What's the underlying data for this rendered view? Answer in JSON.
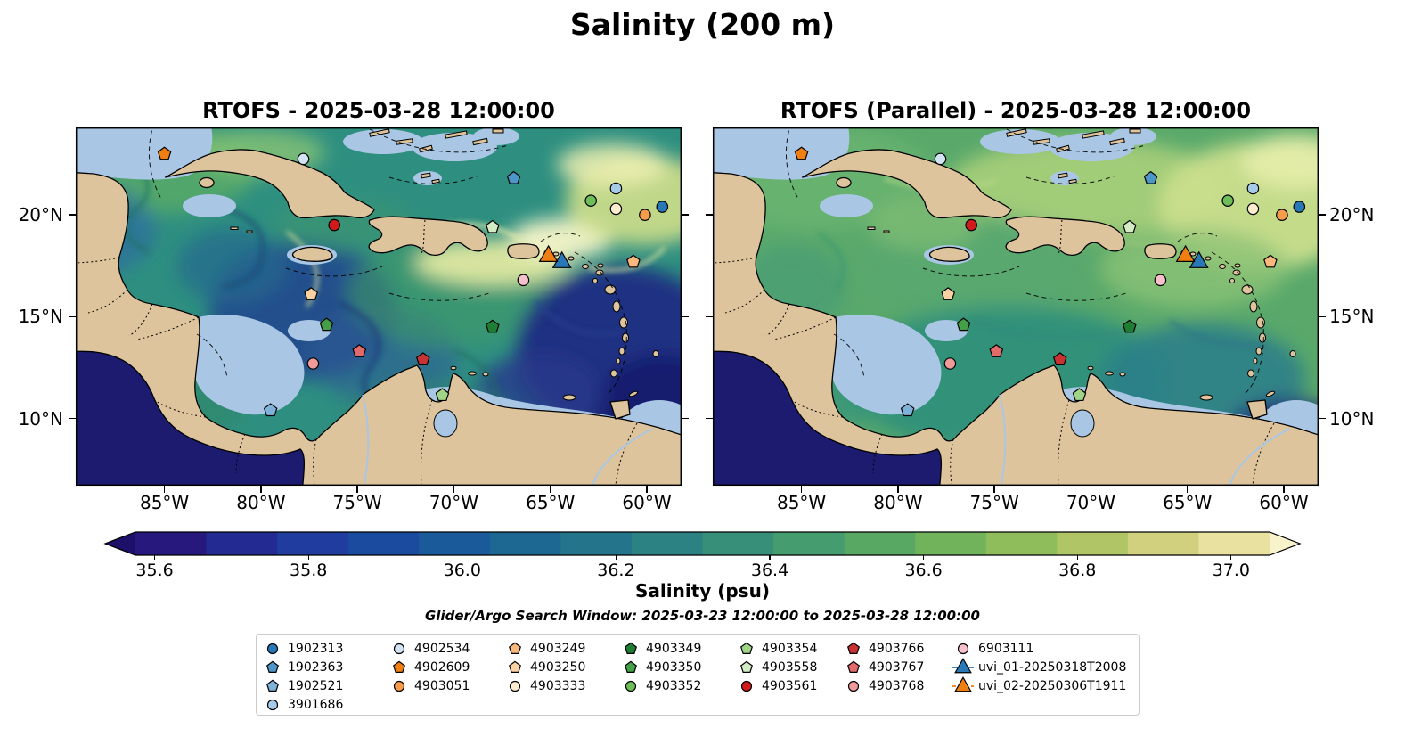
{
  "figure": {
    "title": "Salinity (200 m)",
    "search_window": "Glider/Argo Search Window: 2025-03-23 12:00:00 to 2025-03-28 12:00:00"
  },
  "panels": [
    {
      "title": "RTOFS - 2025-03-28 12:00:00"
    },
    {
      "title": "RTOFS (Parallel) - 2025-03-28 12:00:00"
    }
  ],
  "axes": {
    "lon_range_deg_w": [
      89.6,
      58.2
    ],
    "lat_range_deg_n": [
      24.3,
      6.7
    ],
    "lon_ticks": [
      {
        "deg_w": 85,
        "label": "85°W"
      },
      {
        "deg_w": 80,
        "label": "80°W"
      },
      {
        "deg_w": 75,
        "label": "75°W"
      },
      {
        "deg_w": 70,
        "label": "70°W"
      },
      {
        "deg_w": 65,
        "label": "65°W"
      },
      {
        "deg_w": 60,
        "label": "60°W"
      }
    ],
    "lat_ticks": [
      {
        "deg_n": 20,
        "label": "20°N"
      },
      {
        "deg_n": 15,
        "label": "15°N"
      },
      {
        "deg_n": 10,
        "label": "10°N"
      }
    ]
  },
  "colorbar": {
    "label": "Salinity (psu)",
    "range": [
      35.575,
      37.05
    ],
    "extend": "both",
    "extend_min_color": "#1c1068",
    "extend_max_color": "#f9f3cb",
    "segment_colors": [
      "#27187e",
      "#232a92",
      "#1f3c9e",
      "#1b4b9f",
      "#1a5a9a",
      "#1d6892",
      "#24758b",
      "#2c8283",
      "#378f7a",
      "#459c6e",
      "#58a863",
      "#71b35b",
      "#8fbd5b",
      "#b0c666",
      "#d0d07e",
      "#e9e1a0"
    ],
    "ticks": [
      {
        "value": 35.6,
        "label": "35.6"
      },
      {
        "value": 35.8,
        "label": "35.8"
      },
      {
        "value": 36.0,
        "label": "36.0"
      },
      {
        "value": 36.2,
        "label": "36.2"
      },
      {
        "value": 36.4,
        "label": "36.4"
      },
      {
        "value": 36.6,
        "label": "36.6"
      },
      {
        "value": 36.8,
        "label": "36.8"
      },
      {
        "value": 37.0,
        "label": "37.0"
      }
    ]
  },
  "legend": {
    "columns": [
      [
        "1902313",
        "1902363",
        "1902521",
        "3901686"
      ],
      [
        "4902534",
        "4902609",
        "4903051"
      ],
      [
        "4903249",
        "4903250",
        "4903333"
      ],
      [
        "4903349",
        "4903350",
        "4903352"
      ],
      [
        "4903354",
        "4903558",
        "4903561"
      ],
      [
        "4903766",
        "4903767",
        "4903768"
      ],
      [
        "6903111",
        "uvi_01-20250318T2008",
        "uvi_02-20250306T1911"
      ]
    ]
  },
  "chart_data": {
    "type": "heatmap",
    "title": "Salinity (200 m)",
    "panels": [
      "RTOFS - 2025-03-28 12:00:00",
      "RTOFS (Parallel) - 2025-03-28 12:00:00"
    ],
    "variable": "Salinity (psu)",
    "colormap_range": [
      35.575,
      37.05
    ],
    "colorbar_tick_values": [
      35.6,
      35.8,
      36.0,
      36.2,
      36.4,
      36.6,
      36.8,
      37.0
    ],
    "lon_ticks_deg_w": [
      85,
      80,
      75,
      70,
      65,
      60
    ],
    "lat_ticks_deg_n": [
      20,
      15,
      10
    ],
    "extend": "both",
    "platforms": [
      {
        "id": "1902313",
        "marker": "circle",
        "color": "#2878b8",
        "lon_w": 59.2,
        "lat_n": 20.4
      },
      {
        "id": "1902363",
        "marker": "pentagon",
        "color": "#4d96c8",
        "lon_w": 66.9,
        "lat_n": 21.8
      },
      {
        "id": "1902521",
        "marker": "pentagon",
        "color": "#7fb2d8",
        "lon_w": 79.5,
        "lat_n": 10.4
      },
      {
        "id": "3901686",
        "marker": "circle",
        "color": "#a6cbe8",
        "lon_w": 61.6,
        "lat_n": 21.3
      },
      {
        "id": "4902534",
        "marker": "circle",
        "color": "#d2e4f3",
        "lon_w": 77.8,
        "lat_n": 22.75
      },
      {
        "id": "4902609",
        "marker": "pentagon",
        "color": "#f07f13",
        "lon_w": 85.0,
        "lat_n": 23.0
      },
      {
        "id": "4903051",
        "marker": "circle",
        "color": "#f69c4a",
        "lon_w": 60.1,
        "lat_n": 20.0
      },
      {
        "id": "4903249",
        "marker": "pentagon",
        "color": "#fab87d",
        "lon_w": 60.7,
        "lat_n": 17.7
      },
      {
        "id": "4903250",
        "marker": "pentagon",
        "color": "#fdd2a2",
        "lon_w": 77.4,
        "lat_n": 16.1
      },
      {
        "id": "4903333",
        "marker": "circle",
        "color": "#fdeccd",
        "lon_w": 61.6,
        "lat_n": 20.3
      },
      {
        "id": "4903349",
        "marker": "pentagon",
        "color": "#1d7e34",
        "lon_w": 68.0,
        "lat_n": 14.5
      },
      {
        "id": "4903350",
        "marker": "pentagon",
        "color": "#43a047",
        "lon_w": 76.6,
        "lat_n": 14.6
      },
      {
        "id": "4903352",
        "marker": "circle",
        "color": "#6dbd59",
        "lon_w": 62.9,
        "lat_n": 20.7
      },
      {
        "id": "4903354",
        "marker": "pentagon",
        "color": "#a0d486",
        "lon_w": 70.6,
        "lat_n": 11.15
      },
      {
        "id": "4903558",
        "marker": "pentagon",
        "color": "#d4ecc3",
        "lon_w": 68.0,
        "lat_n": 19.4
      },
      {
        "id": "4903561",
        "marker": "circle",
        "color": "#d11a1a",
        "lon_w": 76.2,
        "lat_n": 19.5
      },
      {
        "id": "4903766",
        "marker": "pentagon",
        "color": "#c93232",
        "lon_w": 71.6,
        "lat_n": 12.9
      },
      {
        "id": "4903767",
        "marker": "pentagon",
        "color": "#e36a6a",
        "lon_w": 74.9,
        "lat_n": 13.3
      },
      {
        "id": "4903768",
        "marker": "circle",
        "color": "#f09a9a",
        "lon_w": 77.3,
        "lat_n": 12.7
      },
      {
        "id": "6903111",
        "marker": "circle",
        "color": "#f7c1cc",
        "lon_w": 66.4,
        "lat_n": 16.8
      },
      {
        "id": "uvi_01-20250318T2008",
        "marker": "triangle",
        "color": "#2878b8",
        "line": "solid",
        "size": 1.35,
        "lon_w": 64.4,
        "lat_n": 17.7
      },
      {
        "id": "uvi_02-20250306T1911",
        "marker": "triangle",
        "color": "#f07f13",
        "line": "dashed",
        "size": 1.35,
        "lon_w": 65.1,
        "lat_n": 18.0
      }
    ]
  }
}
